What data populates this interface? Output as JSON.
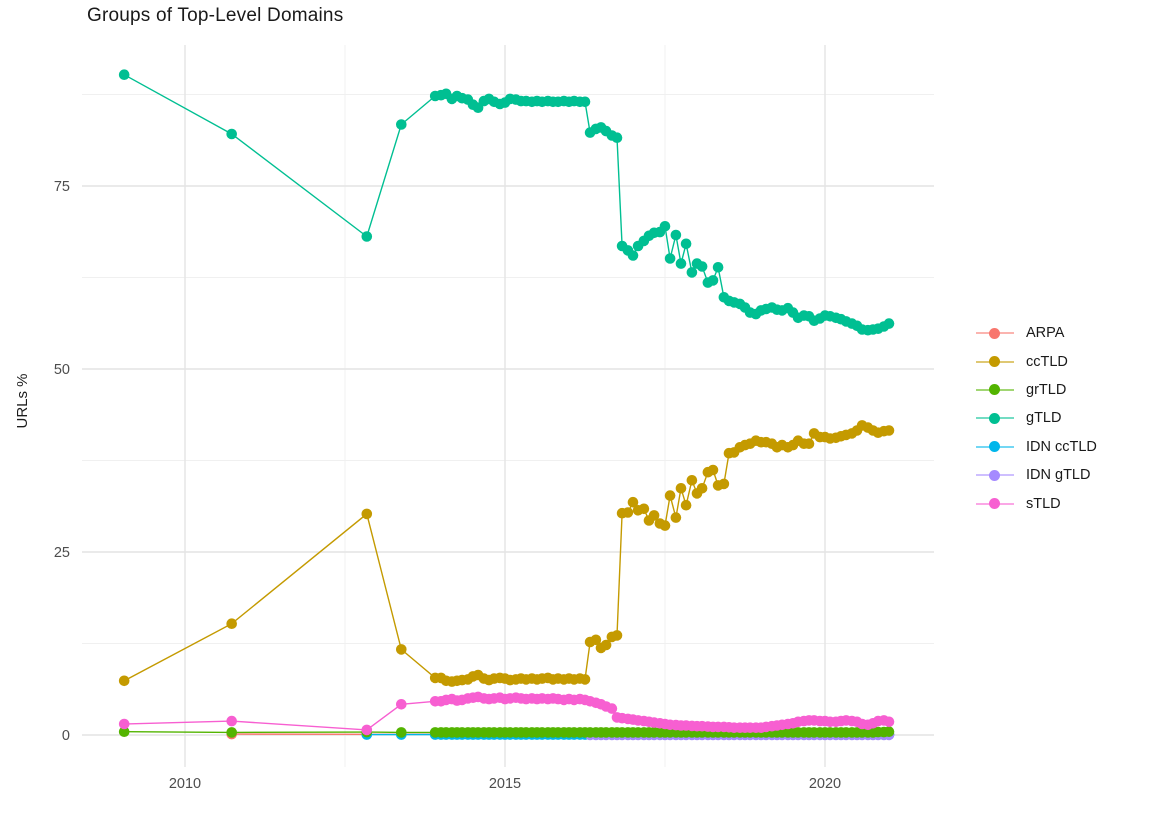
{
  "title": "Groups of Top-Level Domains",
  "axes": {
    "y_label": "URLs %"
  },
  "legend": {
    "items": [
      {
        "label": "ARPA",
        "color": "#F8766D"
      },
      {
        "label": "ccTLD",
        "color": "#C49A00"
      },
      {
        "label": "grTLD",
        "color": "#53B400"
      },
      {
        "label": "gTLD",
        "color": "#00BF92"
      },
      {
        "label": "IDN ccTLD",
        "color": "#00B6EB"
      },
      {
        "label": "IDN gTLD",
        "color": "#A58AFF"
      },
      {
        "label": "sTLD",
        "color": "#F75FD1"
      }
    ]
  },
  "chart_data": {
    "type": "line",
    "title": "Groups of Top-Level Domains",
    "xlabel": "",
    "ylabel": "URLs %",
    "xlim": [
      2008.3,
      2021.7
    ],
    "ylim": [
      -4.5,
      94.3
    ],
    "grid": true,
    "legend_position": "right",
    "x_ticks": [
      {
        "value": 2010,
        "label": "2010"
      },
      {
        "value": 2015,
        "label": "2015"
      },
      {
        "value": 2020,
        "label": "2020"
      }
    ],
    "y_ticks": [
      {
        "value": 0,
        "label": "0"
      },
      {
        "value": 25,
        "label": "25"
      },
      {
        "value": 50,
        "label": "50"
      },
      {
        "value": 75,
        "label": "75"
      }
    ],
    "minor_x_ticks": [
      2012.5,
      2017.5
    ],
    "minor_y_ticks": [
      12.5,
      37.5,
      62.5,
      87.5
    ],
    "draw_order": [
      "ARPA",
      "IDN ccTLD",
      "IDN gTLD",
      "ccTLD",
      "grTLD",
      "gTLD",
      "sTLD"
    ],
    "x": [
      2009.05,
      2010.73,
      2012.84,
      2013.38,
      2013.91,
      2014.0,
      2014.08,
      2014.17,
      2014.25,
      2014.33,
      2014.42,
      2014.5,
      2014.58,
      2014.67,
      2014.75,
      2014.83,
      2014.92,
      2015.0,
      2015.08,
      2015.17,
      2015.25,
      2015.33,
      2015.42,
      2015.5,
      2015.58,
      2015.67,
      2015.75,
      2015.83,
      2015.92,
      2016.0,
      2016.08,
      2016.17,
      2016.25,
      2016.33,
      2016.42,
      2016.5,
      2016.58,
      2016.67,
      2016.75,
      2016.83,
      2016.92,
      2017.0,
      2017.08,
      2017.17,
      2017.25,
      2017.33,
      2017.42,
      2017.5,
      2017.58,
      2017.67,
      2017.75,
      2017.83,
      2017.92,
      2018.0,
      2018.08,
      2018.17,
      2018.25,
      2018.33,
      2018.42,
      2018.5,
      2018.58,
      2018.67,
      2018.75,
      2018.83,
      2018.92,
      2019.0,
      2019.08,
      2019.17,
      2019.25,
      2019.33,
      2019.42,
      2019.5,
      2019.58,
      2019.67,
      2019.75,
      2019.83,
      2019.92,
      2020.0,
      2020.08,
      2020.17,
      2020.25,
      2020.33,
      2020.42,
      2020.5,
      2020.58,
      2020.67,
      2020.75,
      2020.83,
      2020.92,
      2021.0
    ],
    "series": [
      {
        "name": "ARPA",
        "color": "#F8766D",
        "values": [
          null,
          0.12,
          0.1,
          0.1,
          0.1,
          0.1,
          0.1,
          0.1,
          0.1,
          0.1,
          0.1,
          0.1,
          0.1,
          0.1,
          0.1,
          0.1,
          0.1,
          0.1,
          0.1,
          0.1,
          0.1,
          0.1,
          0.1,
          0.1,
          0.1,
          0.1,
          0.1,
          0.1,
          0.1,
          0.1,
          0.1,
          0.1,
          0.1,
          0.1,
          0.1,
          0.1,
          0.1,
          0.1,
          0.1,
          0.1,
          0.1,
          0.1,
          0.1,
          0.1,
          0.1,
          0.1,
          0.1,
          0.1,
          0.1,
          0.1,
          0.1,
          0.1,
          0.1,
          0.1,
          0.1,
          0.1,
          0.1,
          0.1,
          0.1,
          0.1,
          0.1,
          0.1,
          0.1,
          0.1,
          0.1,
          0.1,
          0.1,
          0.1,
          0.1,
          0.1,
          0.1,
          0.1,
          0.1,
          0.1,
          0.1,
          0.1,
          0.1,
          0.1,
          0.1,
          0.1,
          0.1,
          0.1,
          0.1,
          0.1,
          0.1,
          0.1,
          0.1,
          0.1,
          0.1,
          0.1
        ]
      },
      {
        "name": "ccTLD",
        "color": "#C49A00",
        "values": [
          7.4,
          15.2,
          30.2,
          11.7,
          7.8,
          7.8,
          7.4,
          7.3,
          7.4,
          7.5,
          7.6,
          8.0,
          8.2,
          7.7,
          7.5,
          7.7,
          7.8,
          7.7,
          7.5,
          7.6,
          7.7,
          7.6,
          7.7,
          7.6,
          7.7,
          7.8,
          7.6,
          7.7,
          7.6,
          7.7,
          7.6,
          7.7,
          7.6,
          12.7,
          13.0,
          11.9,
          12.3,
          13.4,
          13.6,
          30.3,
          30.4,
          31.8,
          30.7,
          30.9,
          29.3,
          30.0,
          28.9,
          28.6,
          32.7,
          29.7,
          33.7,
          31.4,
          34.8,
          33.0,
          33.7,
          35.9,
          36.2,
          34.1,
          34.3,
          38.5,
          38.6,
          39.3,
          39.6,
          39.8,
          40.2,
          40.0,
          40.0,
          39.8,
          39.3,
          39.6,
          39.3,
          39.6,
          40.2,
          39.8,
          39.8,
          41.2,
          40.7,
          40.7,
          40.5,
          40.6,
          40.8,
          41.0,
          41.2,
          41.6,
          42.3,
          42.0,
          41.6,
          41.3,
          41.5,
          41.6
        ]
      },
      {
        "name": "grTLD",
        "color": "#53B400",
        "values": [
          0.45,
          0.35,
          0.4,
          0.35,
          0.35,
          0.35,
          0.35,
          0.35,
          0.35,
          0.35,
          0.35,
          0.35,
          0.35,
          0.35,
          0.35,
          0.35,
          0.35,
          0.35,
          0.35,
          0.35,
          0.35,
          0.35,
          0.35,
          0.35,
          0.35,
          0.35,
          0.35,
          0.35,
          0.35,
          0.35,
          0.35,
          0.35,
          0.35,
          0.35,
          0.35,
          0.35,
          0.35,
          0.35,
          0.35,
          0.35,
          0.35,
          0.35,
          0.35,
          0.35,
          0.35,
          0.35,
          0.35,
          0.35,
          0.35,
          0.35,
          0.35,
          0.35,
          0.35,
          0.35,
          0.35,
          0.35,
          0.35,
          0.35,
          0.35,
          0.35,
          0.35,
          0.35,
          0.35,
          0.35,
          0.35,
          0.35,
          0.35,
          0.35,
          0.35,
          0.35,
          0.35,
          0.35,
          0.35,
          0.35,
          0.35,
          0.35,
          0.35,
          0.35,
          0.35,
          0.35,
          0.35,
          0.35,
          0.35,
          0.35,
          0.35,
          0.35,
          0.35,
          0.4,
          0.4,
          0.45
        ]
      },
      {
        "name": "gTLD",
        "color": "#00BF92",
        "values": [
          90.2,
          82.1,
          68.1,
          83.4,
          87.3,
          87.4,
          87.6,
          86.9,
          87.3,
          87.0,
          86.8,
          86.1,
          85.7,
          86.6,
          86.9,
          86.5,
          86.2,
          86.4,
          86.9,
          86.8,
          86.6,
          86.6,
          86.5,
          86.6,
          86.5,
          86.6,
          86.5,
          86.5,
          86.6,
          86.5,
          86.6,
          86.5,
          86.5,
          82.3,
          82.8,
          83.0,
          82.5,
          81.9,
          81.6,
          66.8,
          66.2,
          65.5,
          66.8,
          67.5,
          68.2,
          68.6,
          68.7,
          69.5,
          65.1,
          68.3,
          64.4,
          67.1,
          63.2,
          64.4,
          64.0,
          61.8,
          62.1,
          63.9,
          59.8,
          59.3,
          59.1,
          58.9,
          58.4,
          57.7,
          57.5,
          58.0,
          58.2,
          58.4,
          58.1,
          58.0,
          58.3,
          57.7,
          57.0,
          57.3,
          57.2,
          56.6,
          56.9,
          57.3,
          57.2,
          57.0,
          56.8,
          56.5,
          56.2,
          55.9,
          55.4,
          55.3,
          55.4,
          55.5,
          55.8,
          56.2
        ]
      },
      {
        "name": "IDN ccTLD",
        "color": "#00B6EB",
        "values": [
          null,
          null,
          0.05,
          0.05,
          0.05,
          0.05,
          0.05,
          0.05,
          0.05,
          0.05,
          0.05,
          0.05,
          0.05,
          0.05,
          0.05,
          0.05,
          0.05,
          0.05,
          0.05,
          0.05,
          0.05,
          0.05,
          0.05,
          0.05,
          0.05,
          0.05,
          0.05,
          0.05,
          0.05,
          0.05,
          0.05,
          0.05,
          0.05,
          0.05,
          0.05,
          0.05,
          0.05,
          0.05,
          0.05,
          0.05,
          0.05,
          0.05,
          0.05,
          0.05,
          0.05,
          0.05,
          0.05,
          0.05,
          0.05,
          0.05,
          0.05,
          0.05,
          0.05,
          0.05,
          0.05,
          0.05,
          0.05,
          0.05,
          0.05,
          0.05,
          0.05,
          0.05,
          0.05,
          0.05,
          0.05,
          0.05,
          0.05,
          0.05,
          0.05,
          0.05,
          0.05,
          0.05,
          0.05,
          0.05,
          0.05,
          0.05,
          0.05,
          0.05,
          0.05,
          0.05,
          0.05,
          0.05,
          0.05,
          0.05,
          0.05,
          0.05,
          0.05,
          0.05,
          0.05,
          0.05
        ]
      },
      {
        "name": "IDN gTLD",
        "color": "#A58AFF",
        "values": [
          null,
          null,
          null,
          null,
          null,
          null,
          null,
          null,
          null,
          null,
          null,
          null,
          null,
          null,
          null,
          null,
          null,
          null,
          null,
          null,
          null,
          null,
          null,
          null,
          null,
          null,
          null,
          null,
          null,
          null,
          null,
          null,
          null,
          0.02,
          0.02,
          0.02,
          0.02,
          0.02,
          0.02,
          0.02,
          0.02,
          0.02,
          0.02,
          0.02,
          0.02,
          0.02,
          0.02,
          0.02,
          0.02,
          0.02,
          0.02,
          0.02,
          0.02,
          0.02,
          0.02,
          0.02,
          0.02,
          0.02,
          0.02,
          0.02,
          0.02,
          0.02,
          0.02,
          0.02,
          0.02,
          0.02,
          0.02,
          0.02,
          0.02,
          0.02,
          0.02,
          0.02,
          0.02,
          0.02,
          0.02,
          0.02,
          0.02,
          0.02,
          0.02,
          0.02,
          0.02,
          0.02,
          0.02,
          0.02,
          0.02,
          0.02,
          0.02,
          0.02,
          0.02,
          0.02
        ]
      },
      {
        "name": "sTLD",
        "color": "#F75FD1",
        "values": [
          1.5,
          1.9,
          0.7,
          4.2,
          4.6,
          4.6,
          4.8,
          4.9,
          4.7,
          4.8,
          5.0,
          5.1,
          5.2,
          5.0,
          4.9,
          5.0,
          5.1,
          4.9,
          5.0,
          5.1,
          5.0,
          4.9,
          5.0,
          4.9,
          5.0,
          4.9,
          5.0,
          4.9,
          4.8,
          4.9,
          4.8,
          4.9,
          4.8,
          4.6,
          4.4,
          4.2,
          3.9,
          3.6,
          2.4,
          2.3,
          2.2,
          2.1,
          2.0,
          1.9,
          1.8,
          1.7,
          1.6,
          1.5,
          1.4,
          1.35,
          1.3,
          1.3,
          1.25,
          1.2,
          1.2,
          1.15,
          1.1,
          1.1,
          1.1,
          1.05,
          1.0,
          1.0,
          1.0,
          1.0,
          1.0,
          1.0,
          1.1,
          1.2,
          1.3,
          1.4,
          1.5,
          1.6,
          1.8,
          1.9,
          2.0,
          2.0,
          1.9,
          1.9,
          1.8,
          1.8,
          1.9,
          2.0,
          1.9,
          1.8,
          1.5,
          1.4,
          1.6,
          1.9,
          2.0,
          1.8
        ]
      }
    ]
  }
}
